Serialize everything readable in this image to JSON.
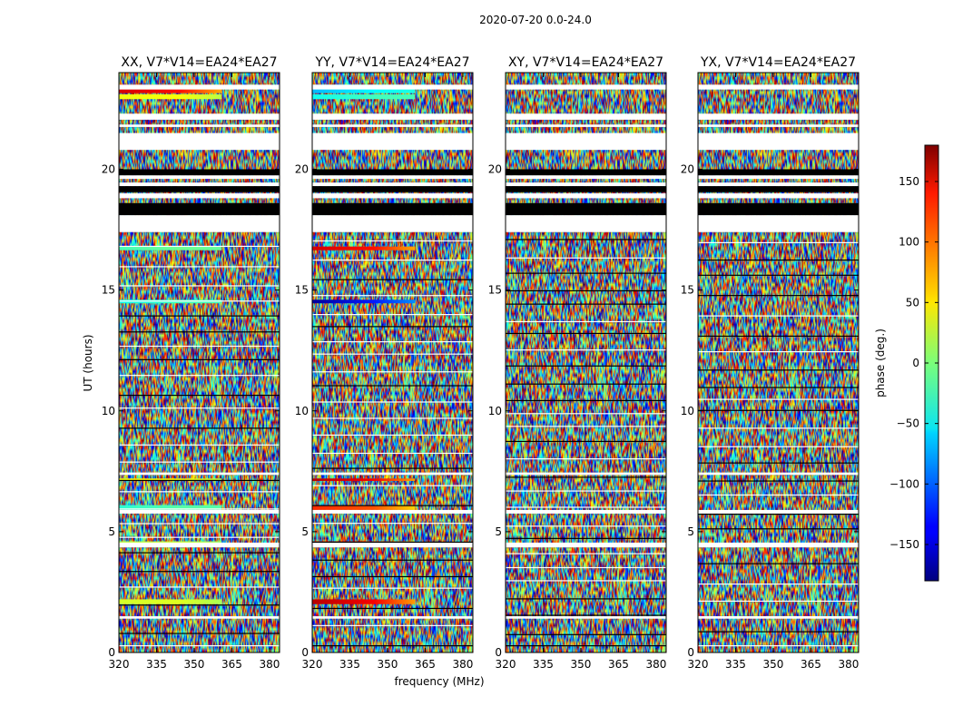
{
  "figure": {
    "suptitle": "2020-07-20 0.0-24.0"
  },
  "colorbar": {
    "label": "phase (deg.)",
    "ticks": [
      150,
      100,
      50,
      0,
      -50,
      -100,
      -150
    ],
    "tick_labels": [
      "150",
      "100",
      "50",
      "0",
      "−50",
      "−100",
      "−150"
    ],
    "range": [
      -180,
      180
    ],
    "colormap": "jet"
  },
  "chart_data": {
    "type": "heatmap",
    "title": "2020-07-20 0.0-24.0",
    "xlabel": "frequency (MHz)",
    "ylabel": "UT (hours)",
    "xlim": [
      320,
      384
    ],
    "ylim": [
      0,
      24
    ],
    "xticks": [
      320,
      335,
      350,
      365,
      380
    ],
    "yticks": [
      0,
      5,
      10,
      15,
      20
    ],
    "zlabel": "phase (deg.)",
    "zlim": [
      -180,
      180
    ],
    "flagged_ut_hours": [
      [
        23.3,
        23.5
      ],
      [
        22.05,
        22.3
      ],
      [
        21.75,
        21.85
      ],
      [
        20.8,
        21.5
      ],
      [
        18.8,
        19.0
      ],
      [
        19.3,
        19.45
      ],
      [
        19.6,
        19.75
      ],
      [
        17.4,
        18.1
      ],
      [
        7.35,
        7.45
      ],
      [
        5.75,
        5.9
      ],
      [
        4.35,
        4.55
      ],
      [
        1.4,
        1.5
      ]
    ],
    "blank_ut_hours": [
      [
        19.45,
        19.6
      ],
      [
        18.55,
        18.8
      ]
    ],
    "panels": [
      {
        "title": "XX, V7*V14=EA24*EA27",
        "coherent_scans": [
          {
            "ut": [
              23.15,
              23.5
            ],
            "phase": 150
          },
          {
            "ut": [
              22.9,
              23.1
            ],
            "phase": 40
          },
          {
            "ut": [
              16.65,
              16.8
            ],
            "phase": -20
          },
          {
            "ut": [
              14.45,
              14.6
            ],
            "phase": -40
          },
          {
            "ut": [
              7.1,
              7.2
            ],
            "phase": 45
          },
          {
            "ut": [
              5.9,
              6.1
            ],
            "phase": -30
          },
          {
            "ut": [
              4.4,
              4.6
            ],
            "phase": 20
          },
          {
            "ut": [
              2.0,
              2.2
            ],
            "phase": 30
          }
        ]
      },
      {
        "title": "YY, V7*V14=EA24*EA27",
        "coherent_scans": [
          {
            "ut": [
              23.15,
              23.5
            ],
            "phase": -70
          },
          {
            "ut": [
              22.9,
              23.1
            ],
            "phase": -40
          },
          {
            "ut": [
              16.65,
              16.8
            ],
            "phase": 150
          },
          {
            "ut": [
              14.45,
              14.6
            ],
            "phase": -170
          },
          {
            "ut": [
              7.1,
              7.2
            ],
            "phase": 160
          },
          {
            "ut": [
              5.9,
              6.1
            ],
            "phase": 120
          },
          {
            "ut": [
              4.4,
              4.6
            ],
            "phase": 140
          },
          {
            "ut": [
              2.0,
              2.2
            ],
            "phase": 160
          }
        ]
      },
      {
        "title": "XY, V7*V14=EA24*EA27",
        "coherent_scans": []
      },
      {
        "title": "YX, V7*V14=EA24*EA27",
        "coherent_scans": []
      }
    ]
  }
}
